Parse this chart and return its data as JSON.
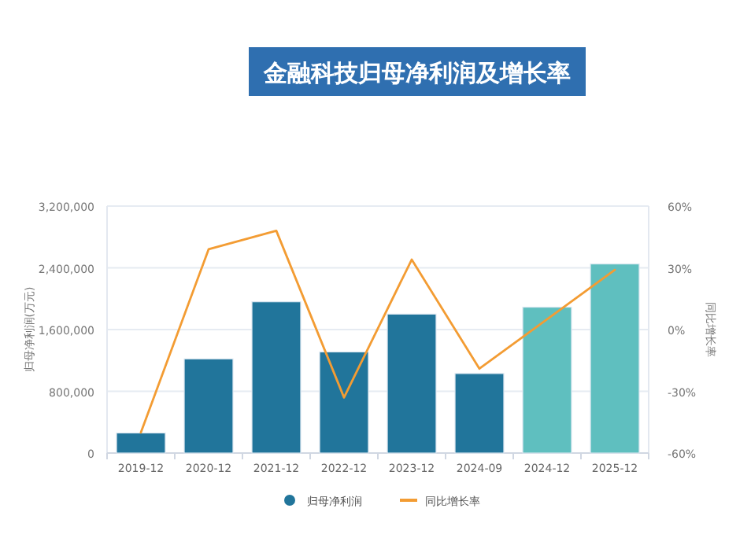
{
  "chart_data": {
    "type": "bar",
    "title": "金融科技归母净利润及增长率",
    "ylabel": "归母净利润(万元)",
    "y2label": "同比增长率",
    "categories": [
      "2019-12",
      "2020-12",
      "2021-12",
      "2022-12",
      "2023-12",
      "2024-09",
      "2024-12",
      "2025-12"
    ],
    "series": [
      {
        "name": "归母净利润",
        "type": "bar",
        "color": "#21759b",
        "colors": [
          "#21759b",
          "#21759b",
          "#21759b",
          "#21759b",
          "#21759b",
          "#21759b",
          "#5fbfbf",
          "#5fbfbf"
        ],
        "values": [
          260000,
          1220000,
          1960000,
          1310000,
          1800000,
          1030000,
          1890000,
          2450000
        ]
      },
      {
        "name": "同比增长率",
        "type": "line",
        "axis": "y2",
        "color": "#f39c33",
        "values": [
          -50,
          39,
          48,
          -33,
          34,
          -19,
          5,
          29
        ]
      }
    ],
    "ylim": [
      0,
      3200000
    ],
    "yticks": [
      {
        "value": 0,
        "label": "0"
      },
      {
        "value": 800000,
        "label": "800,000"
      },
      {
        "value": 1600000,
        "label": "1,600,000"
      },
      {
        "value": 2400000,
        "label": "2,400,000"
      },
      {
        "value": 3200000,
        "label": "3,200,000"
      }
    ],
    "y2lim": [
      -60,
      60
    ],
    "y2ticks": [
      {
        "value": -60,
        "label": "-60%"
      },
      {
        "value": -30,
        "label": "-30%"
      },
      {
        "value": 0,
        "label": "0%"
      },
      {
        "value": 30,
        "label": "30%"
      },
      {
        "value": 60,
        "label": "60%"
      }
    ],
    "grid": "y",
    "legend": "bottom",
    "marker": "none"
  }
}
